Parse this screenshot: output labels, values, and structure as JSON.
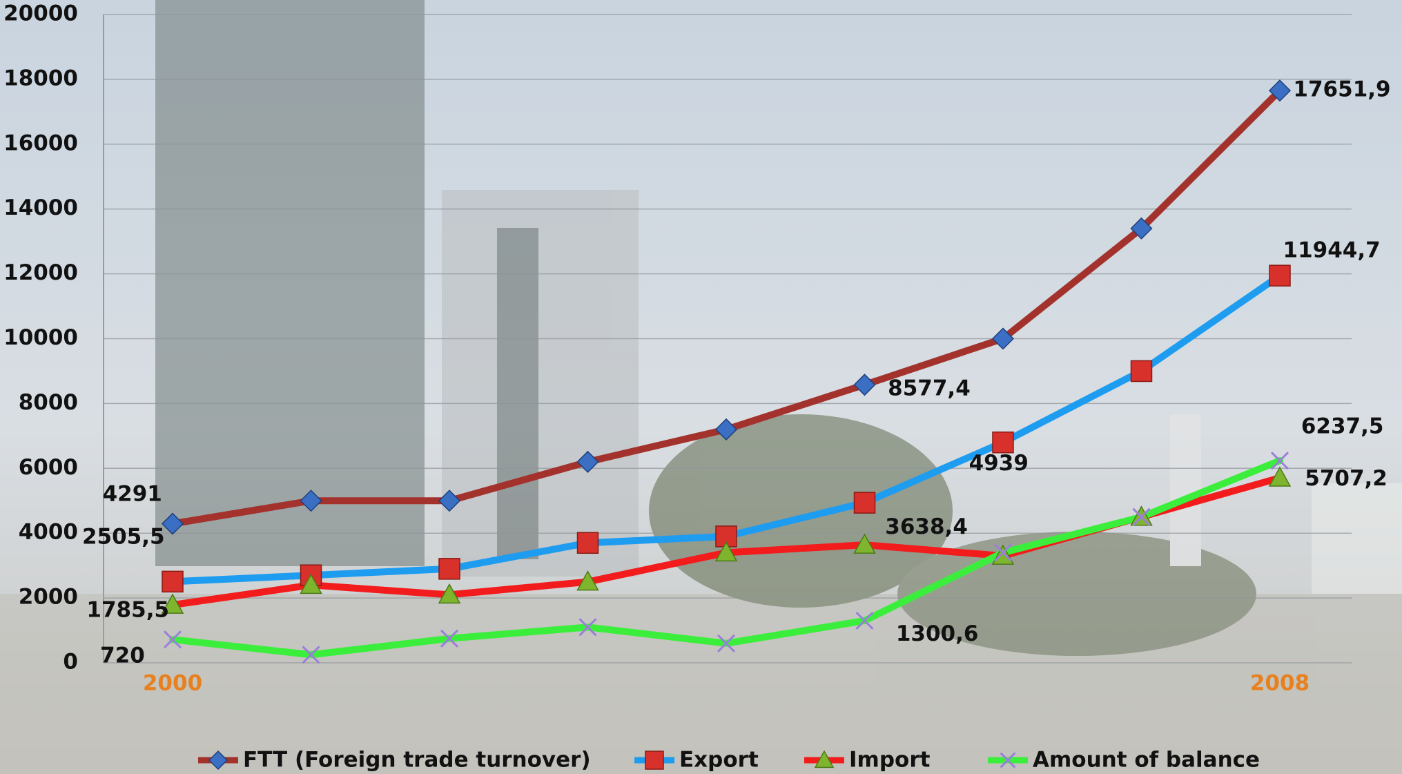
{
  "chart_data": {
    "type": "line",
    "categories": [
      "2000",
      null,
      null,
      null,
      null,
      null,
      null,
      null,
      "2008"
    ],
    "series": [
      {
        "name": "FTT (Foreign trade turnover)",
        "color": "#a3322c",
        "marker": "diamond",
        "marker_color": "#3a6fc4",
        "values": [
          4291,
          5000,
          5000,
          6200,
          7200,
          8577.4,
          10000,
          13400,
          17651.9
        ],
        "value_labels": [
          "4291",
          null,
          null,
          null,
          null,
          "8577,4",
          null,
          null,
          "17651,9"
        ]
      },
      {
        "name": "Export",
        "color": "#1e9cf0",
        "marker": "square",
        "marker_color": "#d8302a",
        "values": [
          2505.5,
          2700,
          2900,
          3700,
          3900,
          4939,
          6800,
          9000,
          11944.7
        ],
        "value_labels": [
          "2505,5",
          null,
          null,
          null,
          null,
          "4939",
          null,
          null,
          "11944,7"
        ]
      },
      {
        "name": "Import",
        "color": "#f21c1c",
        "marker": "triangle",
        "marker_color": "#7fb52e",
        "values": [
          1785.5,
          2400,
          2100,
          2500,
          3400,
          3638.4,
          3300,
          4500,
          5707.2
        ],
        "value_labels": [
          "1785,5",
          null,
          null,
          null,
          null,
          "3638,4",
          null,
          null,
          "5707,2"
        ]
      },
      {
        "name": "Amount of balance",
        "color": "#3cee3c",
        "marker": "x",
        "marker_color": "#9a7fd8",
        "values": [
          720,
          250,
          750,
          1100,
          600,
          1300.6,
          3400,
          4500,
          6237.5
        ],
        "value_labels": [
          "720",
          null,
          null,
          null,
          null,
          "1300,6",
          null,
          null,
          "6237,5"
        ]
      }
    ],
    "ylim": [
      0,
      20000
    ],
    "yticks": [
      0,
      2000,
      4000,
      6000,
      8000,
      10000,
      12000,
      14000,
      16000,
      18000,
      20000
    ],
    "grid": true,
    "legend": "bottom"
  }
}
